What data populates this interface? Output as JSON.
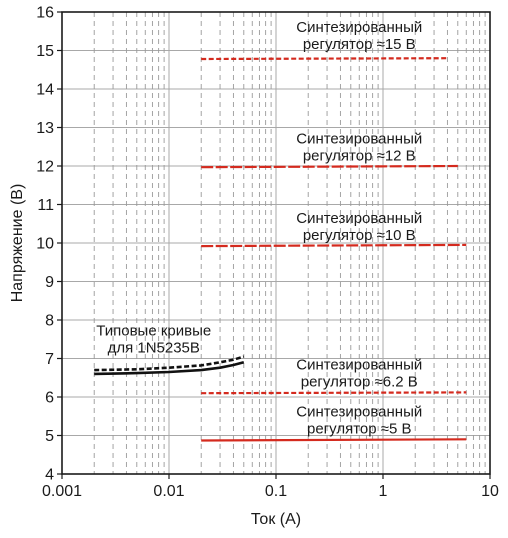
{
  "chart_data": {
    "type": "line",
    "xlabel": "Ток (A)",
    "ylabel": "Напряжение (B)",
    "x_scale": "log",
    "xlim": [
      0.001,
      10
    ],
    "ylim": [
      4,
      16
    ],
    "x_ticks": [
      0.001,
      0.01,
      0.1,
      1,
      10
    ],
    "x_tick_labels": [
      "0.001",
      "0.01",
      "0.1",
      "1",
      "10"
    ],
    "y_ticks": [
      4,
      5,
      6,
      7,
      8,
      9,
      10,
      11,
      12,
      13,
      14,
      15,
      16
    ],
    "y_tick_labels": [
      "4",
      "5",
      "6",
      "7",
      "8",
      "9",
      "10",
      "11",
      "12",
      "13",
      "14",
      "15",
      "16"
    ],
    "grid": "major solid, minor dashed",
    "series": [
      {
        "style": "solid",
        "color": "#111111",
        "points": [
          [
            0.002,
            6.6
          ],
          [
            0.005,
            6.62
          ],
          [
            0.01,
            6.65
          ],
          [
            0.02,
            6.7
          ],
          [
            0.03,
            6.76
          ],
          [
            0.04,
            6.83
          ],
          [
            0.05,
            6.9
          ]
        ]
      },
      {
        "style": "dashed",
        "color": "#111111",
        "points": [
          [
            0.002,
            6.7
          ],
          [
            0.005,
            6.72
          ],
          [
            0.01,
            6.76
          ],
          [
            0.02,
            6.82
          ],
          [
            0.03,
            6.9
          ],
          [
            0.04,
            6.97
          ],
          [
            0.05,
            7.05
          ]
        ]
      },
      {
        "style": "dashed",
        "color": "#d42a1e",
        "points": [
          [
            0.02,
            14.78
          ],
          [
            4,
            14.8
          ]
        ]
      },
      {
        "style": "long-dash",
        "color": "#d42a1e",
        "points": [
          [
            0.02,
            11.97
          ],
          [
            5,
            12.0
          ]
        ]
      },
      {
        "style": "long-dash",
        "color": "#d42a1e",
        "points": [
          [
            0.02,
            9.92
          ],
          [
            6,
            9.95
          ]
        ]
      },
      {
        "style": "dashed",
        "color": "#d42a1e",
        "points": [
          [
            0.02,
            6.1
          ],
          [
            6,
            6.12
          ]
        ]
      },
      {
        "style": "solid",
        "color": "#d42a1e",
        "points": [
          [
            0.02,
            4.87
          ],
          [
            6,
            4.9
          ]
        ]
      }
    ],
    "annotations": [
      {
        "id": "anno-15v",
        "lines": [
          "Синтезированный",
          "регулятор ≈15 В"
        ],
        "x": 0.6,
        "y": 15.48
      },
      {
        "id": "anno-12v",
        "lines": [
          "Синтезированный",
          "регулятор ≈12 В"
        ],
        "x": 0.6,
        "y": 12.58
      },
      {
        "id": "anno-10v",
        "lines": [
          "Синтезированный",
          "регулятор ≈10 В"
        ],
        "x": 0.6,
        "y": 10.52
      },
      {
        "id": "anno-6v2",
        "lines": [
          "Синтезированный",
          "регулятор ≈6.2 В"
        ],
        "x": 0.6,
        "y": 6.72
      },
      {
        "id": "anno-5v",
        "lines": [
          "Синтезированный",
          "регулятор ≈5 В"
        ],
        "x": 0.6,
        "y": 5.5
      },
      {
        "id": "anno-1n5235b",
        "lines": [
          "Типовые кривые",
          "для 1N5235B"
        ],
        "x": 0.0072,
        "y": 7.6
      }
    ]
  }
}
